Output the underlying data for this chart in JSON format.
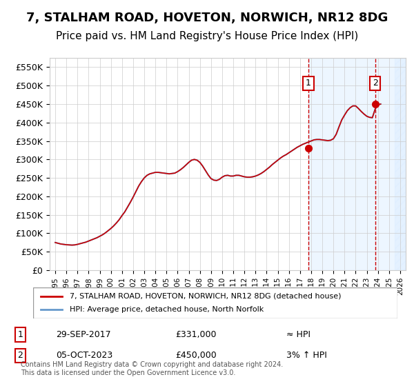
{
  "title": "7, STALHAM ROAD, HOVETON, NORWICH, NR12 8DG",
  "subtitle": "Price paid vs. HM Land Registry's House Price Index (HPI)",
  "title_fontsize": 13,
  "subtitle_fontsize": 11,
  "ylabel_ticks": [
    "£0",
    "£50K",
    "£100K",
    "£150K",
    "£200K",
    "£250K",
    "£300K",
    "£350K",
    "£400K",
    "£450K",
    "£500K",
    "£550K"
  ],
  "ytick_vals": [
    0,
    50000,
    100000,
    150000,
    200000,
    250000,
    300000,
    350000,
    400000,
    450000,
    500000,
    550000
  ],
  "ylim": [
    0,
    575000
  ],
  "xlim": [
    1994.5,
    2026.5
  ],
  "x_years": [
    1995,
    1996,
    1997,
    1998,
    1999,
    2000,
    2001,
    2002,
    2003,
    2004,
    2005,
    2006,
    2007,
    2008,
    2009,
    2010,
    2011,
    2012,
    2013,
    2014,
    2015,
    2016,
    2017,
    2018,
    2019,
    2020,
    2021,
    2022,
    2023,
    2024,
    2025,
    2026
  ],
  "hpi_x": [
    1995.0,
    1995.25,
    1995.5,
    1995.75,
    1996.0,
    1996.25,
    1996.5,
    1996.75,
    1997.0,
    1997.25,
    1997.5,
    1997.75,
    1998.0,
    1998.25,
    1998.5,
    1998.75,
    1999.0,
    1999.25,
    1999.5,
    1999.75,
    2000.0,
    2000.25,
    2000.5,
    2000.75,
    2001.0,
    2001.25,
    2001.5,
    2001.75,
    2002.0,
    2002.25,
    2002.5,
    2002.75,
    2003.0,
    2003.25,
    2003.5,
    2003.75,
    2004.0,
    2004.25,
    2004.5,
    2004.75,
    2005.0,
    2005.25,
    2005.5,
    2005.75,
    2006.0,
    2006.25,
    2006.5,
    2006.75,
    2007.0,
    2007.25,
    2007.5,
    2007.75,
    2008.0,
    2008.25,
    2008.5,
    2008.75,
    2009.0,
    2009.25,
    2009.5,
    2009.75,
    2010.0,
    2010.25,
    2010.5,
    2010.75,
    2011.0,
    2011.25,
    2011.5,
    2011.75,
    2012.0,
    2012.25,
    2012.5,
    2012.75,
    2013.0,
    2013.25,
    2013.5,
    2013.75,
    2014.0,
    2014.25,
    2014.5,
    2014.75,
    2015.0,
    2015.25,
    2015.5,
    2015.75,
    2016.0,
    2016.25,
    2016.5,
    2016.75,
    2017.0,
    2017.25,
    2017.5,
    2017.75,
    2018.0,
    2018.25,
    2018.5,
    2018.75,
    2019.0,
    2019.25,
    2019.5,
    2019.75,
    2020.0,
    2020.25,
    2020.5,
    2020.75,
    2021.0,
    2021.25,
    2021.5,
    2021.75,
    2022.0,
    2022.25,
    2022.5,
    2022.75,
    2023.0,
    2023.25,
    2023.5,
    2023.75,
    2024.0,
    2024.25
  ],
  "hpi_y": [
    75000,
    73000,
    71000,
    70000,
    69000,
    68500,
    68000,
    68500,
    70000,
    72000,
    74000,
    76000,
    79000,
    82000,
    85000,
    88000,
    92000,
    96000,
    101000,
    107000,
    113000,
    120000,
    128000,
    137000,
    148000,
    158000,
    171000,
    184000,
    198000,
    213000,
    228000,
    240000,
    250000,
    257000,
    261000,
    263000,
    265000,
    265000,
    264000,
    263000,
    262000,
    261000,
    262000,
    263000,
    267000,
    272000,
    278000,
    285000,
    292000,
    298000,
    300000,
    298000,
    292000,
    282000,
    270000,
    258000,
    248000,
    244000,
    243000,
    246000,
    252000,
    256000,
    257000,
    255000,
    255000,
    257000,
    257000,
    255000,
    253000,
    252000,
    252000,
    253000,
    255000,
    258000,
    262000,
    267000,
    273000,
    279000,
    286000,
    292000,
    298000,
    304000,
    309000,
    313000,
    318000,
    323000,
    328000,
    333000,
    337000,
    341000,
    344000,
    347000,
    350000,
    353000,
    354000,
    354000,
    353000,
    352000,
    351000,
    352000,
    356000,
    368000,
    388000,
    407000,
    420000,
    432000,
    440000,
    445000,
    445000,
    438000,
    430000,
    423000,
    417000,
    414000,
    413000,
    436000,
    448000,
    450000
  ],
  "sale1_x": 2017.75,
  "sale1_y": 331000,
  "sale2_x": 2023.75,
  "sale2_y": 450000,
  "vline1_x": 2017.75,
  "vline2_x": 2023.75,
  "shade_start": 2017.75,
  "shade_end": 2026.5,
  "background_color": "#ffffff",
  "plot_bg_color": "#ffffff",
  "grid_color": "#cccccc",
  "line_color_red": "#cc0000",
  "line_color_blue": "#6699cc",
  "shade_color": "#ddeeff",
  "vline_color": "#cc0000",
  "legend_label_red": "7, STALHAM ROAD, HOVETON, NORWICH, NR12 8DG (detached house)",
  "legend_label_blue": "HPI: Average price, detached house, North Norfolk",
  "annotation1_label": "1",
  "annotation1_date": "29-SEP-2017",
  "annotation1_price": "£331,000",
  "annotation1_hpi": "≈ HPI",
  "annotation2_label": "2",
  "annotation2_date": "05-OCT-2023",
  "annotation2_price": "£450,000",
  "annotation2_hpi": "3% ↑ HPI",
  "footer": "Contains HM Land Registry data © Crown copyright and database right 2024.\nThis data is licensed under the Open Government Licence v3.0."
}
